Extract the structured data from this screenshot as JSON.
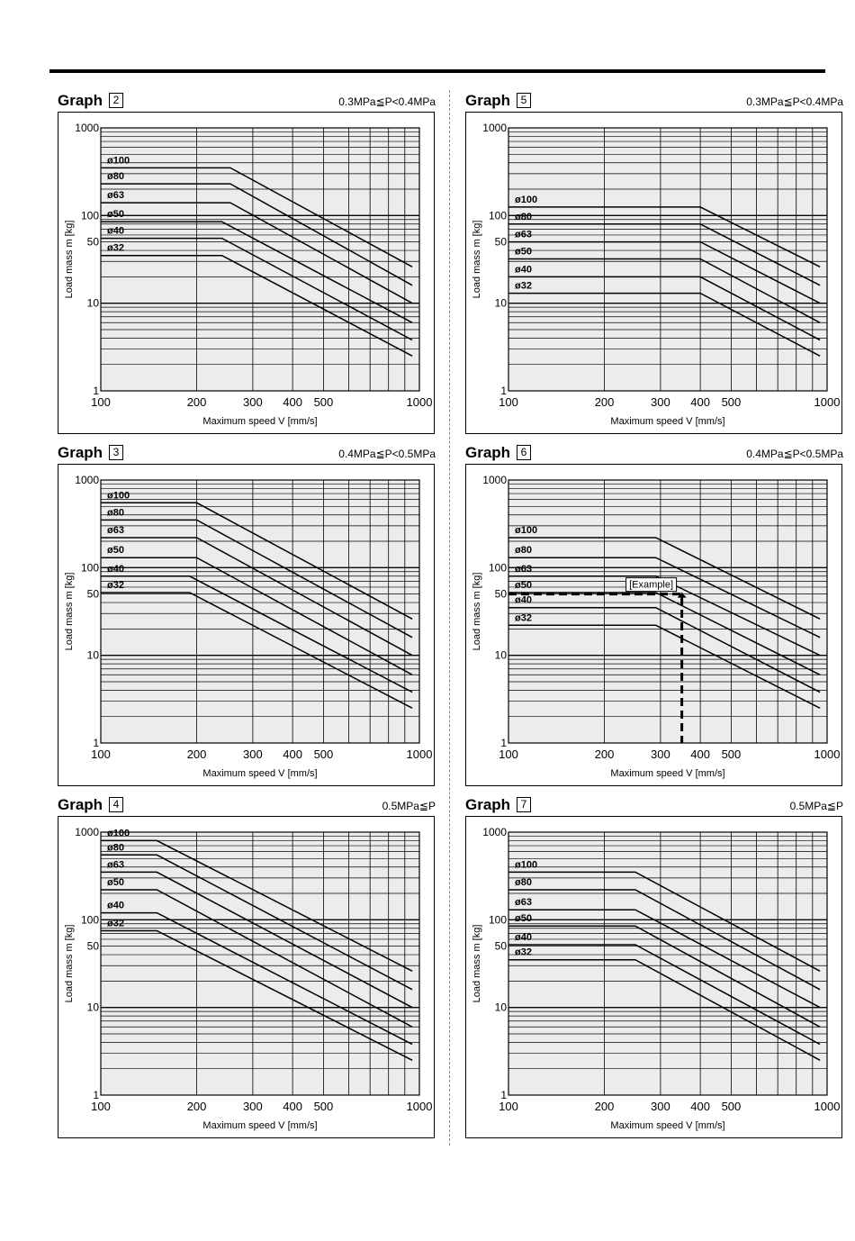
{
  "page": {
    "accent_color": "#000000",
    "plot_bg_color": "#ececec"
  },
  "chart_data": [
    {
      "type": "line",
      "graph_word": "Graph",
      "graph_number": "2",
      "pressure_label": "0.3MPa≦P<0.4MPa",
      "xlabel": "Maximum speed V [mm/s]",
      "ylabel": "Load mass m [kg]",
      "xscale": "log",
      "yscale": "log",
      "xlim": [
        100,
        1000
      ],
      "ylim": [
        1,
        1000
      ],
      "xticks": [
        "100",
        "200",
        "300",
        "400",
        "500",
        "1000"
      ],
      "yticks": [
        "1",
        "10",
        "50",
        "100",
        "1000"
      ],
      "grid": true,
      "series": [
        {
          "name": "ø100",
          "points": [
            [
              100,
              350
            ],
            [
              255,
              350
            ],
            [
              950,
              26
            ]
          ]
        },
        {
          "name": "ø80",
          "points": [
            [
              100,
              230
            ],
            [
              255,
              230
            ],
            [
              950,
              16
            ]
          ]
        },
        {
          "name": "ø63",
          "points": [
            [
              100,
              140
            ],
            [
              255,
              140
            ],
            [
              950,
              10
            ]
          ]
        },
        {
          "name": "ø50",
          "points": [
            [
              100,
              85
            ],
            [
              240,
              85
            ],
            [
              950,
              6
            ]
          ]
        },
        {
          "name": "ø40",
          "points": [
            [
              100,
              55
            ],
            [
              240,
              55
            ],
            [
              950,
              3.8
            ]
          ]
        },
        {
          "name": "ø32",
          "points": [
            [
              100,
              35
            ],
            [
              240,
              35
            ],
            [
              950,
              2.5
            ]
          ]
        }
      ]
    },
    {
      "type": "line",
      "graph_word": "Graph",
      "graph_number": "5",
      "pressure_label": "0.3MPa≦P<0.4MPa",
      "xlabel": "Maximum speed V [mm/s]",
      "ylabel": "Load mass m [kg]",
      "xscale": "log",
      "yscale": "log",
      "xlim": [
        100,
        1000
      ],
      "ylim": [
        1,
        1000
      ],
      "xticks": [
        "100",
        "200",
        "300",
        "400",
        "500",
        "1000"
      ],
      "yticks": [
        "1",
        "10",
        "50",
        "100",
        "1000"
      ],
      "grid": true,
      "series": [
        {
          "name": "ø100",
          "points": [
            [
              100,
              125
            ],
            [
              400,
              125
            ],
            [
              950,
              26
            ]
          ]
        },
        {
          "name": "ø80",
          "points": [
            [
              100,
              80
            ],
            [
              400,
              80
            ],
            [
              950,
              16
            ]
          ]
        },
        {
          "name": "ø63",
          "points": [
            [
              100,
              50
            ],
            [
              400,
              50
            ],
            [
              950,
              10
            ]
          ]
        },
        {
          "name": "ø50",
          "points": [
            [
              100,
              32
            ],
            [
              400,
              32
            ],
            [
              950,
              6
            ]
          ]
        },
        {
          "name": "ø40",
          "points": [
            [
              100,
              20
            ],
            [
              400,
              20
            ],
            [
              950,
              3.8
            ]
          ]
        },
        {
          "name": "ø32",
          "points": [
            [
              100,
              13
            ],
            [
              400,
              13
            ],
            [
              950,
              2.5
            ]
          ]
        }
      ]
    },
    {
      "type": "line",
      "graph_word": "Graph",
      "graph_number": "3",
      "pressure_label": "0.4MPa≦P<0.5MPa",
      "xlabel": "Maximum speed V [mm/s]",
      "ylabel": "Load mass m [kg]",
      "xscale": "log",
      "yscale": "log",
      "xlim": [
        100,
        1000
      ],
      "ylim": [
        1,
        1000
      ],
      "xticks": [
        "100",
        "200",
        "300",
        "400",
        "500",
        "1000"
      ],
      "yticks": [
        "1",
        "10",
        "50",
        "100",
        "1000"
      ],
      "grid": true,
      "series": [
        {
          "name": "ø100",
          "points": [
            [
              100,
              550
            ],
            [
              200,
              550
            ],
            [
              950,
              26
            ]
          ]
        },
        {
          "name": "ø80",
          "points": [
            [
              100,
              350
            ],
            [
              200,
              350
            ],
            [
              950,
              16
            ]
          ]
        },
        {
          "name": "ø63",
          "points": [
            [
              100,
              220
            ],
            [
              200,
              220
            ],
            [
              950,
              10
            ]
          ]
        },
        {
          "name": "ø50",
          "points": [
            [
              100,
              130
            ],
            [
              200,
              130
            ],
            [
              950,
              6
            ]
          ]
        },
        {
          "name": "ø40",
          "points": [
            [
              100,
              80
            ],
            [
              190,
              80
            ],
            [
              950,
              3.8
            ]
          ]
        },
        {
          "name": "ø32",
          "points": [
            [
              100,
              52
            ],
            [
              190,
              52
            ],
            [
              950,
              2.5
            ]
          ]
        }
      ]
    },
    {
      "type": "line",
      "graph_word": "Graph",
      "graph_number": "6",
      "pressure_label": "0.4MPa≦P<0.5MPa",
      "xlabel": "Maximum speed V [mm/s]",
      "ylabel": "Load mass m [kg]",
      "xscale": "log",
      "yscale": "log",
      "xlim": [
        100,
        1000
      ],
      "ylim": [
        1,
        1000
      ],
      "xticks": [
        "100",
        "200",
        "300",
        "400",
        "500",
        "1000"
      ],
      "yticks": [
        "1",
        "10",
        "50",
        "100",
        "1000"
      ],
      "grid": true,
      "series": [
        {
          "name": "ø100",
          "points": [
            [
              100,
              220
            ],
            [
              290,
              220
            ],
            [
              950,
              26
            ]
          ]
        },
        {
          "name": "ø80",
          "points": [
            [
              100,
              130
            ],
            [
              290,
              130
            ],
            [
              950,
              16
            ]
          ]
        },
        {
          "name": "ø63",
          "points": [
            [
              100,
              80
            ],
            [
              290,
              80
            ],
            [
              950,
              10
            ]
          ]
        },
        {
          "name": "ø50",
          "points": [
            [
              100,
              52
            ],
            [
              290,
              52
            ],
            [
              950,
              6
            ]
          ]
        },
        {
          "name": "ø40",
          "points": [
            [
              100,
              35
            ],
            [
              290,
              35
            ],
            [
              950,
              3.8
            ]
          ]
        },
        {
          "name": "ø32",
          "points": [
            [
              100,
              22
            ],
            [
              290,
              22
            ],
            [
              950,
              2.5
            ]
          ]
        }
      ],
      "example": {
        "label": "[Example]",
        "x": 350,
        "y": 50
      }
    },
    {
      "type": "line",
      "graph_word": "Graph",
      "graph_number": "4",
      "pressure_label": "0.5MPa≦P",
      "xlabel": "Maximum speed V [mm/s]",
      "ylabel": "Load mass m [kg]",
      "xscale": "log",
      "yscale": "log",
      "xlim": [
        100,
        1000
      ],
      "ylim": [
        1,
        1000
      ],
      "xticks": [
        "100",
        "200",
        "300",
        "400",
        "500",
        "1000"
      ],
      "yticks": [
        "1",
        "10",
        "50",
        "100",
        "1000"
      ],
      "grid": true,
      "series": [
        {
          "name": "ø100",
          "points": [
            [
              100,
              800
            ],
            [
              150,
              800
            ],
            [
              950,
              26
            ]
          ]
        },
        {
          "name": "ø80",
          "points": [
            [
              100,
              550
            ],
            [
              150,
              550
            ],
            [
              950,
              16
            ]
          ]
        },
        {
          "name": "ø63",
          "points": [
            [
              100,
              350
            ],
            [
              150,
              350
            ],
            [
              950,
              10
            ]
          ]
        },
        {
          "name": "ø50",
          "points": [
            [
              100,
              220
            ],
            [
              150,
              220
            ],
            [
              950,
              6
            ]
          ]
        },
        {
          "name": "ø40",
          "points": [
            [
              100,
              120
            ],
            [
              150,
              120
            ],
            [
              950,
              3.8
            ]
          ]
        },
        {
          "name": "ø32",
          "points": [
            [
              100,
              75
            ],
            [
              150,
              75
            ],
            [
              950,
              2.5
            ]
          ]
        }
      ]
    },
    {
      "type": "line",
      "graph_word": "Graph",
      "graph_number": "7",
      "pressure_label": "0.5MPa≦P",
      "xlabel": "Maximum speed V [mm/s]",
      "ylabel": "Load mass m [kg]",
      "xscale": "log",
      "yscale": "log",
      "xlim": [
        100,
        1000
      ],
      "ylim": [
        1,
        1000
      ],
      "xticks": [
        "100",
        "200",
        "300",
        "400",
        "500",
        "1000"
      ],
      "yticks": [
        "1",
        "10",
        "50",
        "100",
        "1000"
      ],
      "grid": true,
      "series": [
        {
          "name": "ø100",
          "points": [
            [
              100,
              350
            ],
            [
              250,
              350
            ],
            [
              950,
              26
            ]
          ]
        },
        {
          "name": "ø80",
          "points": [
            [
              100,
              220
            ],
            [
              250,
              220
            ],
            [
              950,
              16
            ]
          ]
        },
        {
          "name": "ø63",
          "points": [
            [
              100,
              130
            ],
            [
              250,
              130
            ],
            [
              950,
              10
            ]
          ]
        },
        {
          "name": "ø50",
          "points": [
            [
              100,
              85
            ],
            [
              250,
              85
            ],
            [
              950,
              6
            ]
          ]
        },
        {
          "name": "ø40",
          "points": [
            [
              100,
              52
            ],
            [
              250,
              52
            ],
            [
              950,
              3.8
            ]
          ]
        },
        {
          "name": "ø32",
          "points": [
            [
              100,
              35
            ],
            [
              250,
              35
            ],
            [
              950,
              2.5
            ]
          ]
        }
      ]
    }
  ]
}
